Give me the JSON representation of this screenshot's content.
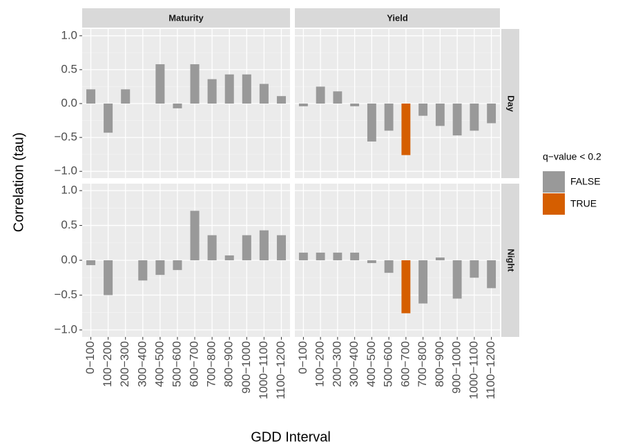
{
  "chart_data": {
    "type": "bar",
    "x_label": "GDD Interval",
    "y_label": "Correlation (tau)",
    "columns": [
      "Maturity",
      "Yield"
    ],
    "rows": [
      "Day",
      "Night"
    ],
    "categories": [
      "0−100",
      "100−200",
      "200−300",
      "300−400",
      "400−500",
      "500−600",
      "600−700",
      "700−800",
      "800−900",
      "900−1000",
      "1000−1100",
      "1100−1200"
    ],
    "ylim": [
      -1.1,
      1.1
    ],
    "yticks": [
      {
        "value": 1,
        "label": "1.0"
      },
      {
        "value": 0.5,
        "label": "0.5"
      },
      {
        "value": 0,
        "label": "0.0"
      },
      {
        "value": -0.5,
        "label": "−0.5"
      },
      {
        "value": -1,
        "label": "−1.0"
      }
    ],
    "grid": true,
    "legend": {
      "title": "q−value < 0.2",
      "position": "right",
      "items": [
        {
          "name": "FALSE",
          "color": "#999999"
        },
        {
          "name": "TRUE",
          "color": "#d55e00"
        }
      ]
    },
    "panels": [
      {
        "column": 0,
        "row": 0,
        "values": [
          0.21,
          -0.43,
          0.21,
          0,
          0.58,
          -0.07,
          0.58,
          0.36,
          0.43,
          0.43,
          0.29,
          0.11
        ],
        "groups": [
          0,
          0,
          0,
          0,
          0,
          0,
          0,
          0,
          0,
          0,
          0,
          0
        ]
      },
      {
        "column": 1,
        "row": 0,
        "values": [
          -0.04,
          0.25,
          0.18,
          -0.04,
          -0.56,
          -0.4,
          -0.76,
          -0.18,
          -0.33,
          -0.47,
          -0.4,
          -0.29
        ],
        "groups": [
          0,
          0,
          0,
          0,
          0,
          0,
          1,
          0,
          0,
          0,
          0,
          0
        ]
      },
      {
        "column": 0,
        "row": 1,
        "values": [
          -0.07,
          -0.5,
          0,
          -0.29,
          -0.21,
          -0.14,
          0.71,
          0.36,
          0.07,
          0.36,
          0.43,
          0.36
        ],
        "groups": [
          0,
          0,
          0,
          0,
          0,
          0,
          0,
          0,
          0,
          0,
          0,
          0
        ]
      },
      {
        "column": 1,
        "row": 1,
        "values": [
          0.11,
          0.11,
          0.11,
          0.11,
          -0.04,
          -0.18,
          -0.76,
          -0.62,
          0.04,
          -0.55,
          -0.25,
          -0.4
        ],
        "groups": [
          0,
          0,
          0,
          0,
          0,
          0,
          1,
          0,
          0,
          0,
          0,
          0
        ]
      }
    ]
  }
}
